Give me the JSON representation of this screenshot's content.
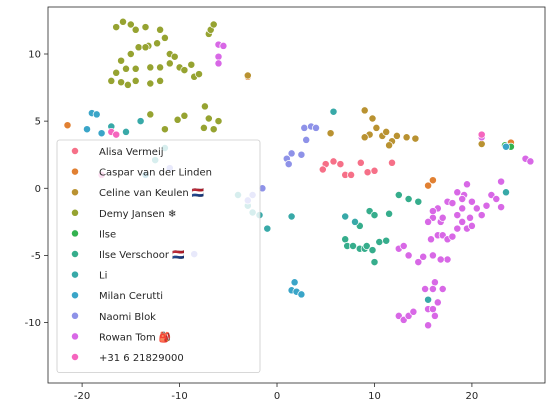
{
  "chart_data": {
    "type": "scatter",
    "title": "",
    "xlabel": "",
    "ylabel": "",
    "xlim": [
      -23.5,
      27.5
    ],
    "ylim": [
      -14.5,
      13.5
    ],
    "xticks": [
      -20,
      -10,
      0,
      10,
      20
    ],
    "yticks": [
      -10,
      -5,
      0,
      5,
      10
    ],
    "grid": false,
    "legend_position": "lower-left",
    "marker_edge_color": "#ffffff",
    "series": [
      {
        "name": "Alisa Vermeij",
        "color": "#f67088",
        "points": [
          [
            5,
            1.8
          ],
          [
            5.8,
            2
          ],
          [
            6.5,
            1.8
          ],
          [
            7,
            1
          ],
          [
            7.6,
            1
          ],
          [
            8.6,
            1.9
          ],
          [
            9.3,
            1.2
          ],
          [
            10,
            1.3
          ],
          [
            11.8,
            1.9
          ],
          [
            4.7,
            1.4
          ]
        ]
      },
      {
        "name": "Caspar van der Linden",
        "color": "#e18032",
        "points": [
          [
            -21.5,
            4.7
          ],
          [
            -3,
            8.3
          ],
          [
            15.5,
            0.2
          ],
          [
            16,
            0.6
          ],
          [
            24,
            3.4
          ]
        ]
      },
      {
        "name": "Celine van Keulen 🇳🇱",
        "color": "#b99231",
        "points": [
          [
            -3,
            8.4
          ],
          [
            5.5,
            4.1
          ],
          [
            9,
            5.8
          ],
          [
            9.5,
            4
          ],
          [
            9.8,
            5.2
          ],
          [
            10.2,
            4.5
          ],
          [
            10.8,
            3.9
          ],
          [
            11.2,
            4.2
          ],
          [
            11.8,
            3.5
          ],
          [
            12.3,
            3.9
          ],
          [
            13.3,
            3.8
          ],
          [
            14.2,
            3.7
          ],
          [
            11.5,
            3.2
          ],
          [
            9,
            3.8
          ],
          [
            21,
            3.3
          ]
        ]
      },
      {
        "name": "Demy Jansen ❄",
        "color": "#96a331",
        "points": [
          [
            -16.5,
            12
          ],
          [
            -15.8,
            12.4
          ],
          [
            -15,
            12.2
          ],
          [
            -14.5,
            11.8
          ],
          [
            -13.5,
            12
          ],
          [
            -12,
            11.8
          ],
          [
            -11.5,
            11.2
          ],
          [
            -12.3,
            10.8
          ],
          [
            -13.2,
            10.6
          ],
          [
            -14.2,
            10.5
          ],
          [
            -15,
            10
          ],
          [
            -16,
            9.5
          ],
          [
            -16.5,
            8.6
          ],
          [
            -17,
            8
          ],
          [
            -15.5,
            8.9
          ],
          [
            -14.5,
            8.9
          ],
          [
            -13,
            9
          ],
          [
            -12,
            9
          ],
          [
            -11,
            9.3
          ],
          [
            -10,
            9
          ],
          [
            -9.5,
            8.8
          ],
          [
            -8.5,
            8.3
          ],
          [
            -12,
            8
          ],
          [
            -13,
            7.8
          ],
          [
            -14.5,
            8
          ],
          [
            -15.3,
            7.7
          ],
          [
            -16,
            7.9
          ],
          [
            -13.5,
            10.5
          ],
          [
            -11,
            10
          ],
          [
            -10.5,
            9.8
          ],
          [
            -8.8,
            9.2
          ],
          [
            -8,
            8.5
          ],
          [
            -7,
            11.5
          ],
          [
            -6.8,
            11.8
          ],
          [
            -6.5,
            12.2
          ],
          [
            -9.5,
            5.4
          ],
          [
            -10.2,
            5.1
          ],
          [
            -11.5,
            4.4
          ],
          [
            -13,
            5.5
          ],
          [
            -7.4,
            6.1
          ],
          [
            -7,
            5.2
          ],
          [
            -6.5,
            4.4
          ],
          [
            -6,
            5
          ],
          [
            -7.5,
            4.5
          ]
        ]
      },
      {
        "name": "Ilse",
        "color": "#32b24f",
        "points": [
          [
            23.4,
            3.2
          ],
          [
            24,
            3.1
          ]
        ]
      },
      {
        "name": "Ilse Verschoor 🇳🇱",
        "color": "#36ad8c",
        "points": [
          [
            7,
            -3.8
          ],
          [
            7.2,
            -4.3
          ],
          [
            7.8,
            -4.3
          ],
          [
            8.5,
            -4.5
          ],
          [
            9,
            -4.5
          ],
          [
            9.2,
            -4.3
          ],
          [
            9.8,
            -4.6
          ],
          [
            10,
            -5.5
          ],
          [
            10.5,
            -4
          ],
          [
            11.2,
            -3.9
          ],
          [
            8.5,
            -2.8
          ],
          [
            9.5,
            -1.7
          ],
          [
            10,
            -2
          ],
          [
            11.5,
            -1.9
          ],
          [
            12.5,
            -0.5
          ],
          [
            13.5,
            -0.8
          ],
          [
            14.5,
            -1
          ]
        ]
      },
      {
        "name": "Li",
        "color": "#38a9a8",
        "points": [
          [
            -17,
            4.6
          ],
          [
            -15.5,
            4.2
          ],
          [
            -14,
            5
          ],
          [
            -11.5,
            3
          ],
          [
            -12.5,
            2.1
          ],
          [
            -4,
            -0.5
          ],
          [
            -3,
            -1.3
          ],
          [
            -2.5,
            -1.8
          ],
          [
            -1.8,
            -2
          ],
          [
            -1,
            -3
          ],
          [
            1.5,
            -2.1
          ],
          [
            7,
            -2.1
          ],
          [
            8,
            -2.5
          ],
          [
            5.8,
            5.7
          ],
          [
            15.5,
            -8.3
          ],
          [
            23.5,
            -0.3
          ]
        ]
      },
      {
        "name": "Milan Cerutti",
        "color": "#3aa5c8",
        "points": [
          [
            -19.5,
            4.4
          ],
          [
            -19,
            5.6
          ],
          [
            -18.5,
            5.5
          ],
          [
            -18,
            4.1
          ],
          [
            1.5,
            -7.6
          ],
          [
            1.8,
            -7
          ],
          [
            2,
            -7.7
          ],
          [
            2.5,
            -7.9
          ],
          [
            -13.5,
            1
          ],
          [
            23.5,
            3.1
          ]
        ]
      },
      {
        "name": "Naomi Blok",
        "color": "#8e92e8",
        "points": [
          [
            2.8,
            4.5
          ],
          [
            3.5,
            4.6
          ],
          [
            4,
            4.5
          ],
          [
            3,
            3.6
          ],
          [
            2.5,
            2.5
          ],
          [
            1.5,
            2.6
          ],
          [
            1,
            2.2
          ],
          [
            1.2,
            1.8
          ],
          [
            -1.5,
            0
          ],
          [
            -2.5,
            -0.5
          ],
          [
            -3,
            -0.9
          ],
          [
            -8.5,
            -4.9
          ],
          [
            -11,
            1.5
          ]
        ]
      },
      {
        "name": "Rowan Tom 🎒",
        "color": "#d868e6",
        "points": [
          [
            -6,
            10.7
          ],
          [
            -5.5,
            10.6
          ],
          [
            -6,
            9.8
          ],
          [
            -6,
            9.3
          ],
          [
            12.5,
            -9.5
          ],
          [
            13,
            -9.8
          ],
          [
            13.5,
            -9.5
          ],
          [
            14,
            -9.2
          ],
          [
            15.5,
            -9
          ],
          [
            16,
            -9
          ],
          [
            16.2,
            -9.5
          ],
          [
            15.5,
            -10.2
          ],
          [
            16.5,
            -8.5
          ],
          [
            17,
            -7.5
          ],
          [
            15.2,
            -7.5
          ],
          [
            16.2,
            -7
          ],
          [
            16,
            -7.5
          ],
          [
            17.5,
            -5.3
          ],
          [
            16.8,
            -5.3
          ],
          [
            16,
            -5
          ],
          [
            13.5,
            -5
          ],
          [
            14.5,
            -5.5
          ],
          [
            15,
            -5.1
          ],
          [
            15.8,
            -3.8
          ],
          [
            16.5,
            -3.5
          ],
          [
            16.8,
            -2.5
          ],
          [
            17,
            -2.2
          ],
          [
            17.5,
            -1
          ],
          [
            18,
            -1.1
          ],
          [
            18.5,
            -2
          ],
          [
            19,
            -1.5
          ],
          [
            19.2,
            -0.5
          ],
          [
            19.5,
            0.3
          ],
          [
            20,
            -1
          ],
          [
            20.5,
            -1.5
          ],
          [
            21,
            -2
          ],
          [
            21.5,
            -1.3
          ],
          [
            22,
            -0.5
          ],
          [
            22.5,
            -0.8
          ],
          [
            23,
            -1.4
          ],
          [
            17,
            -3.5
          ],
          [
            17.5,
            -3.8
          ],
          [
            18,
            -3.6
          ],
          [
            18.5,
            -3
          ],
          [
            19,
            -2.5
          ],
          [
            19.5,
            -3
          ],
          [
            19.8,
            -2.2
          ],
          [
            20,
            -2.8
          ],
          [
            18.5,
            -0.3
          ],
          [
            19,
            -0.8
          ],
          [
            16.5,
            -1.5
          ],
          [
            16,
            -2.2
          ],
          [
            15.5,
            -2.5
          ],
          [
            12.5,
            -4.5
          ],
          [
            13,
            -4.3
          ],
          [
            23,
            0.5
          ],
          [
            21,
            3.8
          ],
          [
            25.5,
            2.2
          ],
          [
            26,
            2
          ],
          [
            16,
            -1.7
          ]
        ]
      },
      {
        "name": "+31 6 21829000",
        "color": "#f565be",
        "points": [
          [
            -18,
            1
          ],
          [
            -17,
            4.2
          ],
          [
            -16.5,
            4
          ],
          [
            21,
            4
          ]
        ]
      }
    ]
  }
}
